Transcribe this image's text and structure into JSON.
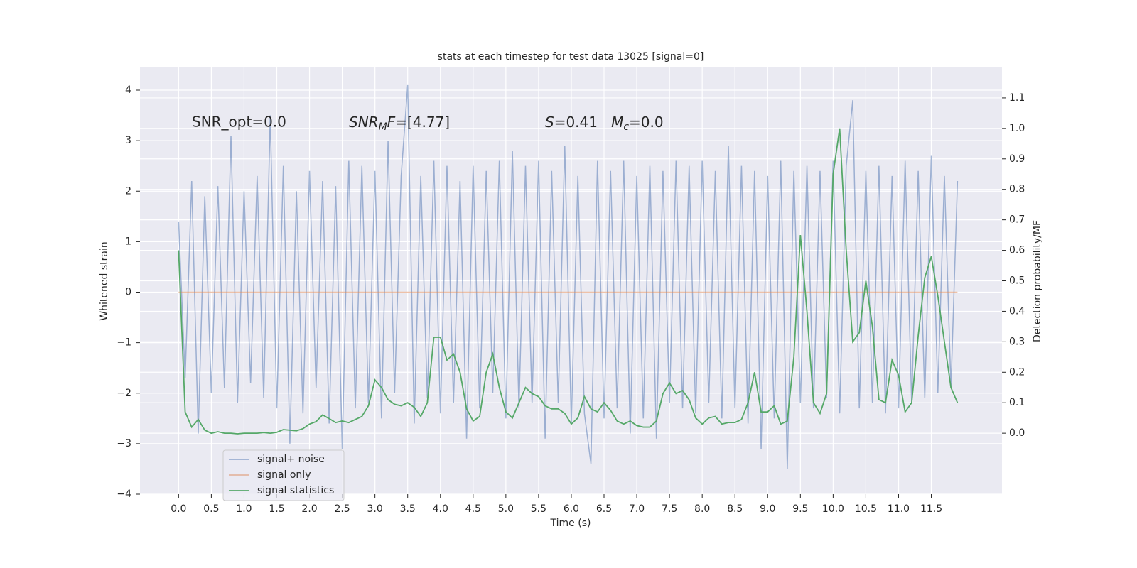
{
  "chart_data": {
    "type": "line",
    "title": "stats at each timestep for test data 13025 [signal=0]",
    "xlabel": "Time (s)",
    "ylabel": "Whitened strain",
    "y2label": "Detection probability/MF",
    "annotations": [
      "SNR_opt=0.0",
      {
        "parts": [
          {
            "text": "SNR",
            "style": "italic"
          },
          {
            "text": "M",
            "style": "sub"
          },
          {
            "text": "F",
            "style": "italic"
          },
          {
            "text": "=[4.77]",
            "style": "normal"
          }
        ]
      },
      {
        "parts": [
          {
            "text": "S",
            "style": "italic"
          },
          {
            "text": "=0.41   ",
            "style": "normal"
          },
          {
            "text": "M",
            "style": "italic"
          },
          {
            "text": "c",
            "style": "sub"
          },
          {
            "text": "=0.0",
            "style": "normal"
          }
        ]
      }
    ],
    "x": [
      0.0,
      0.1,
      0.2,
      0.3,
      0.4,
      0.5,
      0.6,
      0.7,
      0.8,
      0.9,
      1.0,
      1.1,
      1.2,
      1.3,
      1.4,
      1.5,
      1.6,
      1.7,
      1.8,
      1.9,
      2.0,
      2.1,
      2.2,
      2.3,
      2.4,
      2.5,
      2.6,
      2.7,
      2.8,
      2.9,
      3.0,
      3.1,
      3.2,
      3.3,
      3.4,
      3.5,
      3.6,
      3.7,
      3.8,
      3.9,
      4.0,
      4.1,
      4.2,
      4.3,
      4.4,
      4.5,
      4.6,
      4.7,
      4.8,
      4.9,
      5.0,
      5.1,
      5.2,
      5.3,
      5.4,
      5.5,
      5.6,
      5.7,
      5.8,
      5.9,
      6.0,
      6.1,
      6.2,
      6.3,
      6.4,
      6.5,
      6.6,
      6.7,
      6.8,
      6.9,
      7.0,
      7.1,
      7.2,
      7.3,
      7.4,
      7.5,
      7.6,
      7.7,
      7.8,
      7.9,
      8.0,
      8.1,
      8.2,
      8.3,
      8.4,
      8.5,
      8.6,
      8.7,
      8.8,
      8.9,
      9.0,
      9.1,
      9.2,
      9.3,
      9.4,
      9.5,
      9.6,
      9.7,
      9.8,
      9.9,
      10.0,
      10.1,
      10.2,
      10.3,
      10.4,
      10.5,
      10.6,
      10.7,
      10.8,
      10.9,
      11.0,
      11.1,
      11.2,
      11.3,
      11.4,
      11.5,
      11.6,
      11.7,
      11.8,
      11.9
    ],
    "series": [
      {
        "name": "signal+ noise",
        "color": "#4c72b0",
        "opacity": 0.5,
        "values": [
          1.4,
          -1.7,
          2.2,
          -2.8,
          1.9,
          -2.0,
          2.1,
          -1.9,
          3.1,
          -2.2,
          2.0,
          -1.8,
          2.3,
          -2.1,
          3.5,
          -2.3,
          2.5,
          -3.0,
          2.0,
          -2.4,
          2.4,
          -1.9,
          2.2,
          -2.6,
          2.1,
          -3.1,
          2.6,
          -2.3,
          2.5,
          -2.2,
          2.4,
          -2.5,
          3.0,
          -2.0,
          2.3,
          4.1,
          -2.6,
          2.3,
          -2.1,
          2.6,
          -2.4,
          2.5,
          -2.2,
          2.2,
          -2.9,
          2.5,
          -2.3,
          2.4,
          -2.0,
          2.6,
          -2.5,
          2.8,
          -2.3,
          2.5,
          -2.2,
          2.6,
          -2.9,
          2.4,
          -2.2,
          2.9,
          -2.6,
          2.3,
          -2.4,
          -3.4,
          2.6,
          -2.5,
          2.4,
          -2.3,
          2.6,
          -2.8,
          2.3,
          -2.5,
          2.5,
          -2.9,
          2.4,
          -2.2,
          2.6,
          -2.3,
          2.5,
          -2.4,
          2.6,
          -2.2,
          2.4,
          -2.5,
          2.9,
          -2.3,
          2.5,
          -2.6,
          2.4,
          -3.1,
          2.3,
          -2.5,
          2.6,
          -3.5,
          2.4,
          -2.2,
          2.5,
          -2.3,
          2.4,
          -2.1,
          2.6,
          -2.4,
          2.5,
          3.8,
          -2.3,
          2.4,
          -2.2,
          2.5,
          -2.4,
          2.3,
          -2.3,
          2.6,
          -2.2,
          2.4,
          -2.1,
          2.7,
          -2.0,
          2.3,
          -1.9,
          2.2
        ]
      },
      {
        "name": "signal only",
        "color": "#dd8452",
        "opacity": 0.5,
        "values": [
          0,
          0,
          0,
          0,
          0,
          0,
          0,
          0,
          0,
          0,
          0,
          0,
          0,
          0,
          0,
          0,
          0,
          0,
          0,
          0,
          0,
          0,
          0,
          0,
          0,
          0,
          0,
          0,
          0,
          0,
          0,
          0,
          0,
          0,
          0,
          0,
          0,
          0,
          0,
          0,
          0,
          0,
          0,
          0,
          0,
          0,
          0,
          0,
          0,
          0,
          0,
          0,
          0,
          0,
          0,
          0,
          0,
          0,
          0,
          0,
          0,
          0,
          0,
          0,
          0,
          0,
          0,
          0,
          0,
          0,
          0,
          0,
          0,
          0,
          0,
          0,
          0,
          0,
          0,
          0,
          0,
          0,
          0,
          0,
          0,
          0,
          0,
          0,
          0,
          0,
          0,
          0,
          0,
          0,
          0,
          0,
          0,
          0,
          0,
          0,
          0,
          0,
          0,
          0,
          0,
          0,
          0,
          0,
          0,
          0,
          0,
          0,
          0,
          0,
          0,
          0,
          0,
          0,
          0,
          0
        ]
      },
      {
        "name": "signal statistics",
        "color": "#55a868",
        "opacity": 1,
        "axis": "y2",
        "values": [
          0.6,
          0.07,
          0.02,
          0.045,
          0.01,
          0.0,
          0.005,
          0.0,
          0.0,
          -0.002,
          0.0,
          0.0,
          0.0,
          0.002,
          0.0,
          0.003,
          0.012,
          0.01,
          0.008,
          0.015,
          0.03,
          0.038,
          0.06,
          0.048,
          0.035,
          0.04,
          0.035,
          0.045,
          0.055,
          0.09,
          0.175,
          0.15,
          0.11,
          0.095,
          0.09,
          0.1,
          0.085,
          0.055,
          0.1,
          0.315,
          0.315,
          0.24,
          0.26,
          0.2,
          0.08,
          0.04,
          0.055,
          0.2,
          0.26,
          0.15,
          0.07,
          0.05,
          0.1,
          0.15,
          0.13,
          0.12,
          0.09,
          0.08,
          0.08,
          0.065,
          0.03,
          0.05,
          0.12,
          0.08,
          0.07,
          0.1,
          0.075,
          0.04,
          0.03,
          0.04,
          0.025,
          0.02,
          0.02,
          0.04,
          0.13,
          0.165,
          0.13,
          0.14,
          0.11,
          0.05,
          0.03,
          0.05,
          0.055,
          0.03,
          0.035,
          0.035,
          0.045,
          0.1,
          0.2,
          0.07,
          0.07,
          0.09,
          0.03,
          0.04,
          0.25,
          0.65,
          0.4,
          0.1,
          0.065,
          0.13,
          0.85,
          1.0,
          0.6,
          0.3,
          0.33,
          0.5,
          0.35,
          0.11,
          0.1,
          0.24,
          0.19,
          0.07,
          0.1,
          0.32,
          0.51,
          0.58,
          0.45,
          0.3,
          0.15,
          0.1
        ]
      }
    ],
    "xlim": [
      -0.59,
      12.58
    ],
    "ylim": [
      -4.0,
      4.45
    ],
    "y2lim": [
      -0.2,
      1.2
    ],
    "xticks": [
      {
        "value": 0,
        "label": "0.0"
      },
      0.5,
      {
        "value": 1,
        "label": "1.0"
      },
      1.5,
      {
        "value": 2,
        "label": "2.0"
      },
      2.5,
      {
        "value": 3,
        "label": "3.0"
      },
      3.5,
      {
        "value": 4,
        "label": "4.0"
      },
      4.5,
      {
        "value": 5,
        "label": "5.0"
      },
      5.5,
      {
        "value": 6,
        "label": "6.0"
      },
      6.5,
      {
        "value": 7,
        "label": "7.0"
      },
      7.5,
      {
        "value": 8,
        "label": "8.0"
      },
      8.5,
      {
        "value": 9,
        "label": "9.0"
      },
      9.5,
      {
        "value": 10,
        "label": "10.0"
      },
      10.5,
      {
        "value": 11,
        "label": "11.0"
      },
      11.5
    ],
    "yticks": [
      {
        "value": -4,
        "label": "−4"
      },
      {
        "value": -3,
        "label": "−3"
      },
      {
        "value": -2,
        "label": "−2"
      },
      {
        "value": -1,
        "label": "−1"
      },
      0,
      1,
      2,
      3,
      4
    ],
    "y2ticks": [
      {
        "value": 0,
        "label": "0.0"
      },
      0.1,
      0.2,
      0.3,
      0.4,
      0.5,
      0.6,
      0.7,
      0.8,
      0.9,
      {
        "value": 1,
        "label": "1.0"
      },
      1.1
    ],
    "grid": true,
    "legend": "lower left"
  }
}
